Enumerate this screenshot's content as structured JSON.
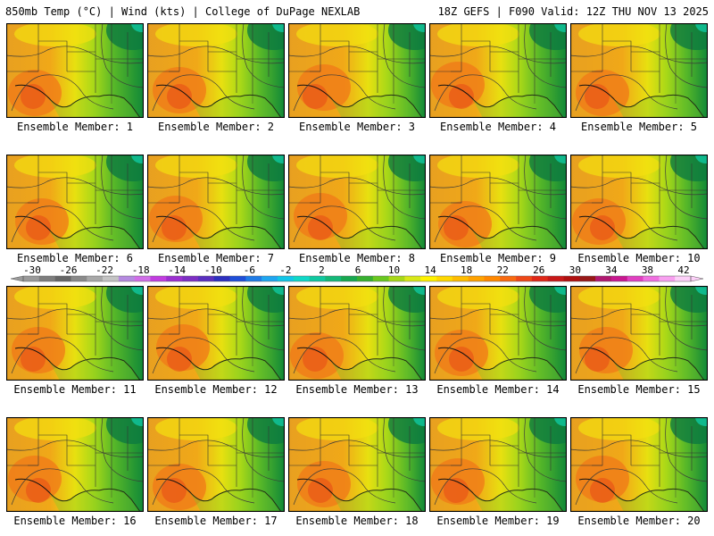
{
  "header": {
    "left_text": "850mb Temp (°C) | Wind (kts) | College of DuPage NEXLAB",
    "right_text": "18Z GEFS | F090 Valid: 12Z THU NOV 13 2025"
  },
  "panels": [
    {
      "label": "Ensemble Member: 1"
    },
    {
      "label": "Ensemble Member: 2"
    },
    {
      "label": "Ensemble Member: 3"
    },
    {
      "label": "Ensemble Member: 4"
    },
    {
      "label": "Ensemble Member: 5"
    },
    {
      "label": "Ensemble Member: 6"
    },
    {
      "label": "Ensemble Member: 7"
    },
    {
      "label": "Ensemble Member: 8"
    },
    {
      "label": "Ensemble Member: 9"
    },
    {
      "label": "Ensemble Member: 10"
    },
    {
      "label": "Ensemble Member: 11"
    },
    {
      "label": "Ensemble Member: 12"
    },
    {
      "label": "Ensemble Member: 13"
    },
    {
      "label": "Ensemble Member: 14"
    },
    {
      "label": "Ensemble Member: 15"
    },
    {
      "label": "Ensemble Member: 16"
    },
    {
      "label": "Ensemble Member: 17"
    },
    {
      "label": "Ensemble Member: 18"
    },
    {
      "label": "Ensemble Member: 19"
    },
    {
      "label": "Ensemble Member: 20"
    }
  ],
  "colorbar": {
    "ticks": [
      "-30",
      "-26",
      "-22",
      "-18",
      "-14",
      "-10",
      "-6",
      "-2",
      "2",
      "6",
      "10",
      "14",
      "18",
      "22",
      "26",
      "30",
      "34",
      "38",
      "42"
    ],
    "colors": [
      "#9a9a9a",
      "#7d7d7d",
      "#666666",
      "#8a8a8a",
      "#a8a8a8",
      "#c4c4c4",
      "#b58ae0",
      "#d06ee8",
      "#c13de0",
      "#9b2fd0",
      "#7d2fc4",
      "#5a2fbf",
      "#2d2fbf",
      "#1f4fd8",
      "#1f7be6",
      "#1fa6f0",
      "#12c6e8",
      "#10d8c8",
      "#10c8a0",
      "#14b878",
      "#18a850",
      "#38b030",
      "#6ac820",
      "#a8d818",
      "#d8e818",
      "#fff200",
      "#ffd800",
      "#ffbd00",
      "#ffa200",
      "#ff8800",
      "#f86a10",
      "#ee4818",
      "#e02818",
      "#c81818",
      "#b01010",
      "#981818",
      "#b01870",
      "#c81890",
      "#e040c0",
      "#f070e0",
      "#f8a0f0",
      "#fcd0f8"
    ]
  }
}
